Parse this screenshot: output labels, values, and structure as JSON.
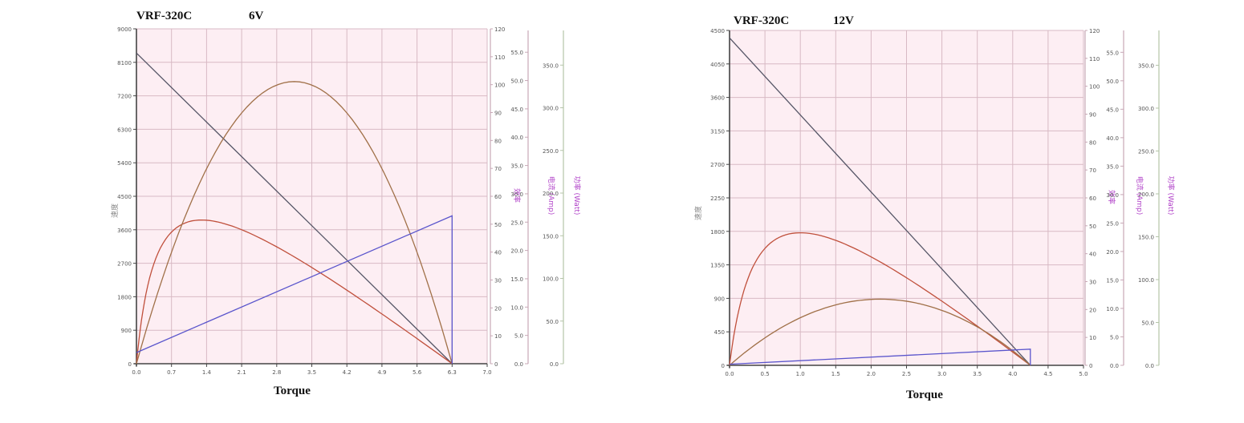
{
  "chart_data": [
    {
      "type": "line",
      "title": "VRF-320C",
      "subtitle": "6V",
      "xlabel": "Torque",
      "ylabel": "速度",
      "xlim": [
        0,
        7.0
      ],
      "x_ticks": [
        "0.0",
        "0.7",
        "1.4",
        "2.1",
        "2.8",
        "3.5",
        "4.2",
        "4.9",
        "5.6",
        "6.3",
        "7.0"
      ],
      "axes": [
        {
          "id": "speed",
          "side": "left",
          "label": "速度",
          "range": [
            0,
            9000
          ],
          "ticks": [
            "0",
            "900",
            "1800",
            "2700",
            "3600",
            "4500",
            "5400",
            "6300",
            "7200",
            "8100",
            "9000"
          ]
        },
        {
          "id": "efficiency",
          "side": "right",
          "label": "效率",
          "range": [
            0,
            120
          ],
          "ticks": [
            "0",
            "10",
            "20",
            "30",
            "40",
            "50",
            "60",
            "70",
            "80",
            "90",
            "100",
            "110",
            "120"
          ]
        },
        {
          "id": "current",
          "side": "right",
          "label": "电流 (Amp)",
          "range": [
            0,
            60
          ],
          "ticks": [
            "0.0",
            "5.0",
            "10.0",
            "15.0",
            "20.0",
            "25.0",
            "30.0",
            "35.0",
            "40.0",
            "45.0",
            "50.0",
            "55.0"
          ]
        },
        {
          "id": "power",
          "side": "right",
          "label": "功率 (Watt)",
          "range": [
            0,
            400
          ],
          "ticks": [
            "0.0",
            "50.0",
            "100.0",
            "150.0",
            "200.0",
            "250.0",
            "300.0",
            "350.0"
          ]
        }
      ],
      "series": [
        {
          "axis": "speed",
          "color": "#555566",
          "kind": "linear",
          "x": [
            0,
            6.3
          ],
          "y": [
            8350,
            0
          ]
        },
        {
          "axis": "efficiency",
          "color": "#c0503c",
          "kind": "efficiency",
          "x_end": 6.3,
          "peak_x": 1.3,
          "peak_y": 51.5
        },
        {
          "axis": "power",
          "color": "#a07048",
          "kind": "parabola",
          "x_end": 6.3,
          "peak_y": 337
        },
        {
          "axis": "current",
          "color": "#5a55cc",
          "kind": "linear_drop",
          "x": [
            0,
            6.3
          ],
          "y": [
            2,
            26.5
          ]
        }
      ],
      "grid": true,
      "colors": {
        "plot_bg": "#fdeef3",
        "grid": "#d8b9c4",
        "axis_left": "#444444",
        "axis_pink": "#c8a8b6",
        "axis_green": "#b5c4a8",
        "label_purple": "#b040c8"
      }
    },
    {
      "type": "line",
      "title": "VRF-320C",
      "subtitle": "12V",
      "xlabel": "Torque",
      "ylabel": "速度",
      "xlim": [
        0,
        5.0
      ],
      "x_ticks": [
        "0.0",
        "0.5",
        "1.0",
        "1.5",
        "2.0",
        "2.5",
        "3.0",
        "3.5",
        "4.0",
        "4.5",
        "5.0"
      ],
      "axes": [
        {
          "id": "speed",
          "side": "left",
          "label": "速度",
          "range": [
            0,
            4500
          ],
          "ticks": [
            "0",
            "450",
            "900",
            "1350",
            "1800",
            "2250",
            "2700",
            "3150",
            "3600",
            "4050",
            "4500"
          ]
        },
        {
          "id": "efficiency",
          "side": "right",
          "label": "效率",
          "range": [
            0,
            120
          ],
          "ticks": [
            "0",
            "10",
            "20",
            "30",
            "40",
            "50",
            "60",
            "70",
            "80",
            "90",
            "100",
            "110",
            "120"
          ]
        },
        {
          "id": "current",
          "side": "right",
          "label": "电流 (Amp)",
          "range": [
            0,
            60
          ],
          "ticks": [
            "0.0",
            "5.0",
            "10.0",
            "15.0",
            "20.0",
            "25.0",
            "30.0",
            "35.0",
            "40.0",
            "45.0",
            "50.0",
            "55.0"
          ]
        },
        {
          "id": "power",
          "side": "right",
          "label": "功率 (Watt)",
          "range": [
            0,
            400
          ],
          "ticks": [
            "0.0",
            "50.0",
            "100.0",
            "150.0",
            "200.0",
            "250.0",
            "300.0",
            "350.0"
          ]
        }
      ],
      "series": [
        {
          "axis": "speed",
          "color": "#555566",
          "kind": "linear",
          "x": [
            0,
            4.25
          ],
          "y": [
            4400,
            0
          ]
        },
        {
          "axis": "efficiency",
          "color": "#c0503c",
          "kind": "efficiency",
          "x_end": 4.25,
          "peak_x": 1.0,
          "peak_y": 47.5
        },
        {
          "axis": "power",
          "color": "#a07048",
          "kind": "parabola",
          "x_end": 4.25,
          "peak_y": 79
        },
        {
          "axis": "current",
          "color": "#5a55cc",
          "kind": "linear_drop",
          "x": [
            0,
            4.25
          ],
          "y": [
            0.2,
            2.9
          ]
        }
      ],
      "grid": true,
      "colors": {
        "plot_bg": "#fdeef3",
        "grid": "#d8b9c4",
        "axis_left": "#444444",
        "axis_pink": "#c8a8b6",
        "axis_green": "#b5c4a8",
        "label_purple": "#b040c8"
      }
    }
  ]
}
